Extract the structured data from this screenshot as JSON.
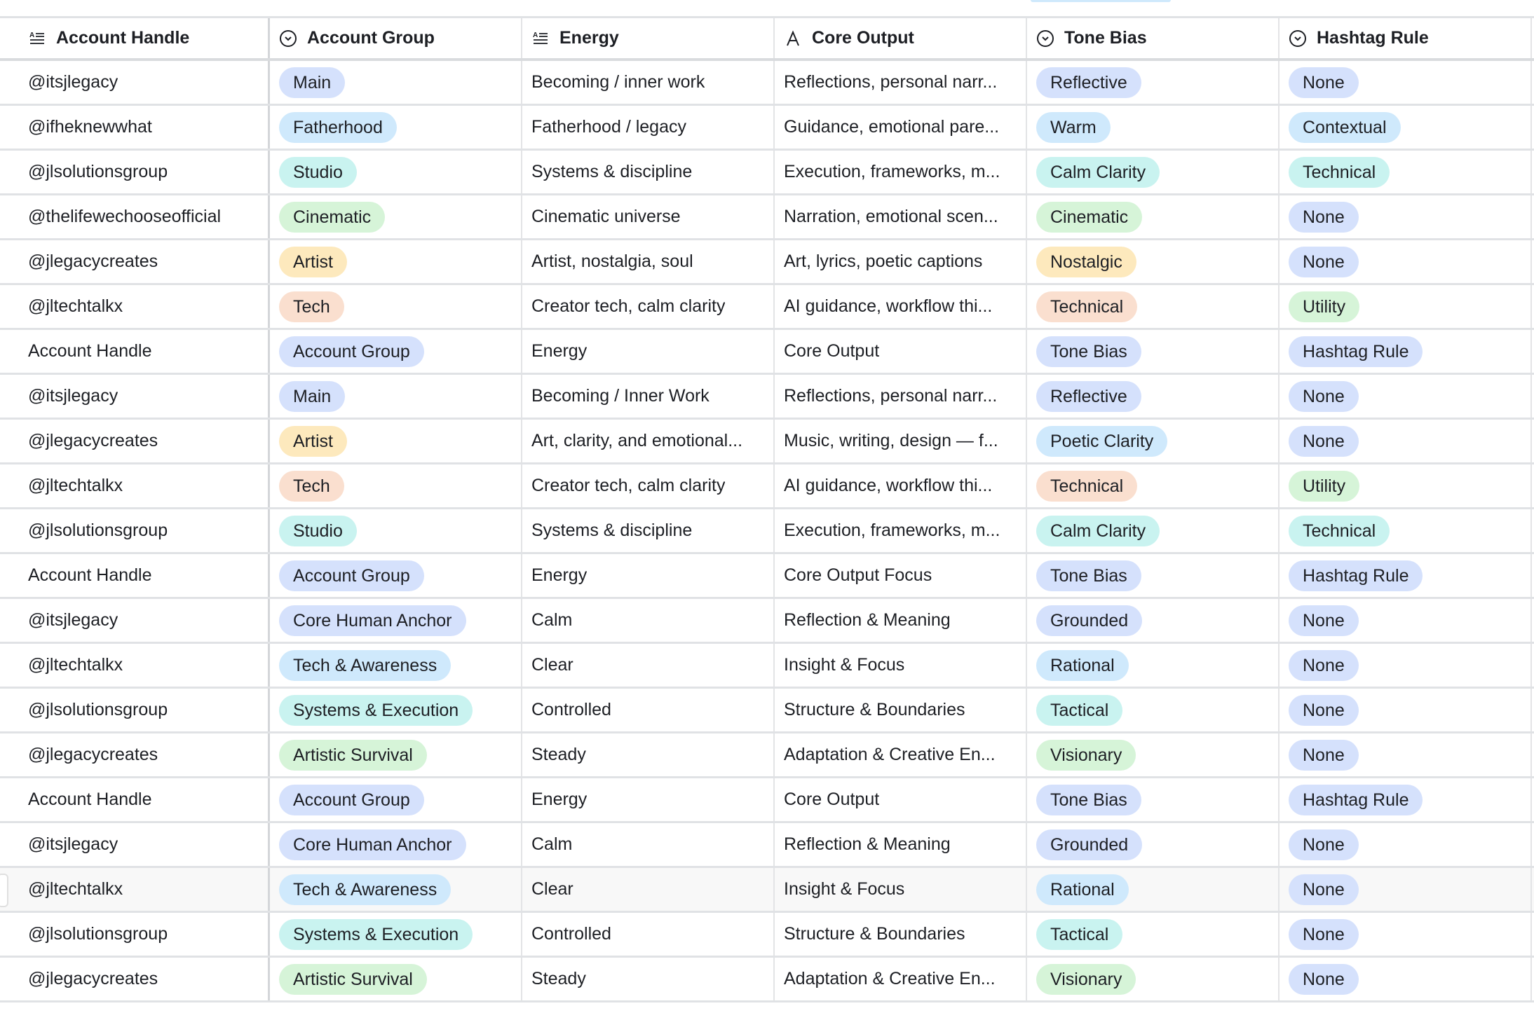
{
  "colors": {
    "blue": "#d5e1fc",
    "sky": "#cfe9fc",
    "teal": "#c9f3f0",
    "green": "#d6f4d8",
    "yellow": "#fde9bd",
    "peach": "#fadfcf",
    "hover_row": "#f8f8f8"
  },
  "columns": [
    {
      "label": "Account Handle",
      "icon": "long-text-icon"
    },
    {
      "label": "Account Group",
      "icon": "single-select-icon"
    },
    {
      "label": "Energy",
      "icon": "long-text-icon"
    },
    {
      "label": "Core Output",
      "icon": "text-icon"
    },
    {
      "label": "Tone Bias",
      "icon": "single-select-icon"
    },
    {
      "label": "Hashtag Rule",
      "icon": "single-select-icon"
    }
  ],
  "hovered_row": 18,
  "rows": [
    [
      "@itsjlegacy",
      [
        "Main",
        "blue"
      ],
      "Becoming / inner work",
      "Reflections, personal narr...",
      [
        "Reflective",
        "blue"
      ],
      [
        "None",
        "blue"
      ]
    ],
    [
      "@ifheknewwhat",
      [
        "Fatherhood",
        "sky"
      ],
      "Fatherhood / legacy",
      "Guidance, emotional pare...",
      [
        "Warm",
        "sky"
      ],
      [
        "Contextual",
        "sky"
      ]
    ],
    [
      "@jlsolutionsgroup",
      [
        "Studio",
        "teal"
      ],
      "Systems & discipline",
      "Execution, frameworks, m...",
      [
        "Calm Clarity",
        "teal"
      ],
      [
        "Technical",
        "teal"
      ]
    ],
    [
      "@thelifewechooseofficial",
      [
        "Cinematic",
        "green"
      ],
      "Cinematic universe",
      "Narration, emotional scen...",
      [
        "Cinematic",
        "green"
      ],
      [
        "None",
        "blue"
      ]
    ],
    [
      "@jlegacycreates",
      [
        "Artist",
        "yellow"
      ],
      "Artist, nostalgia, soul",
      "Art, lyrics, poetic captions",
      [
        "Nostalgic",
        "yellow"
      ],
      [
        "None",
        "blue"
      ]
    ],
    [
      "@jltechtalkx",
      [
        "Tech",
        "peach"
      ],
      "Creator tech, calm clarity",
      "AI guidance, workflow thi...",
      [
        "Technical",
        "peach"
      ],
      [
        "Utility",
        "green"
      ]
    ],
    [
      "Account Handle",
      [
        "Account Group",
        "blue"
      ],
      "Energy",
      "Core Output",
      [
        "Tone Bias",
        "blue"
      ],
      [
        "Hashtag Rule",
        "blue"
      ]
    ],
    [
      "@itsjlegacy",
      [
        "Main",
        "blue"
      ],
      "Becoming / Inner Work",
      "Reflections, personal narr...",
      [
        "Reflective",
        "blue"
      ],
      [
        "None",
        "blue"
      ]
    ],
    [
      "@jlegacycreates",
      [
        "Artist",
        "yellow"
      ],
      "Art, clarity, and emotional...",
      "Music, writing, design — f...",
      [
        "Poetic Clarity",
        "sky"
      ],
      [
        "None",
        "blue"
      ]
    ],
    [
      "@jltechtalkx",
      [
        "Tech",
        "peach"
      ],
      "Creator tech, calm clarity",
      "AI guidance, workflow thi...",
      [
        "Technical",
        "peach"
      ],
      [
        "Utility",
        "green"
      ]
    ],
    [
      "@jlsolutionsgroup",
      [
        "Studio",
        "teal"
      ],
      "Systems & discipline",
      "Execution, frameworks, m...",
      [
        "Calm Clarity",
        "teal"
      ],
      [
        "Technical",
        "teal"
      ]
    ],
    [
      "Account Handle",
      [
        "Account Group",
        "blue"
      ],
      "Energy",
      "Core Output Focus",
      [
        "Tone Bias",
        "blue"
      ],
      [
        "Hashtag Rule",
        "blue"
      ]
    ],
    [
      "@itsjlegacy",
      [
        "Core Human Anchor",
        "blue"
      ],
      "Calm",
      "Reflection & Meaning",
      [
        "Grounded",
        "blue"
      ],
      [
        "None",
        "blue"
      ]
    ],
    [
      "@jltechtalkx",
      [
        "Tech & Awareness",
        "sky"
      ],
      "Clear",
      "Insight & Focus",
      [
        "Rational",
        "sky"
      ],
      [
        "None",
        "blue"
      ]
    ],
    [
      "@jlsolutionsgroup",
      [
        "Systems & Execution",
        "teal"
      ],
      "Controlled",
      "Structure & Boundaries",
      [
        "Tactical",
        "teal"
      ],
      [
        "None",
        "blue"
      ]
    ],
    [
      "@jlegacycreates",
      [
        "Artistic Survival",
        "green"
      ],
      "Steady",
      "Adaptation & Creative En...",
      [
        "Visionary",
        "green"
      ],
      [
        "None",
        "blue"
      ]
    ],
    [
      "Account Handle",
      [
        "Account Group",
        "blue"
      ],
      "Energy",
      "Core Output",
      [
        "Tone Bias",
        "blue"
      ],
      [
        "Hashtag Rule",
        "blue"
      ]
    ],
    [
      "@itsjlegacy",
      [
        "Core Human Anchor",
        "blue"
      ],
      "Calm",
      "Reflection & Meaning",
      [
        "Grounded",
        "blue"
      ],
      [
        "None",
        "blue"
      ]
    ],
    [
      "@jltechtalkx",
      [
        "Tech & Awareness",
        "sky"
      ],
      "Clear",
      "Insight & Focus",
      [
        "Rational",
        "sky"
      ],
      [
        "None",
        "blue"
      ]
    ],
    [
      "@jlsolutionsgroup",
      [
        "Systems & Execution",
        "teal"
      ],
      "Controlled",
      "Structure & Boundaries",
      [
        "Tactical",
        "teal"
      ],
      [
        "None",
        "blue"
      ]
    ],
    [
      "@jlegacycreates",
      [
        "Artistic Survival",
        "green"
      ],
      "Steady",
      "Adaptation & Creative En...",
      [
        "Visionary",
        "green"
      ],
      [
        "None",
        "blue"
      ]
    ]
  ]
}
